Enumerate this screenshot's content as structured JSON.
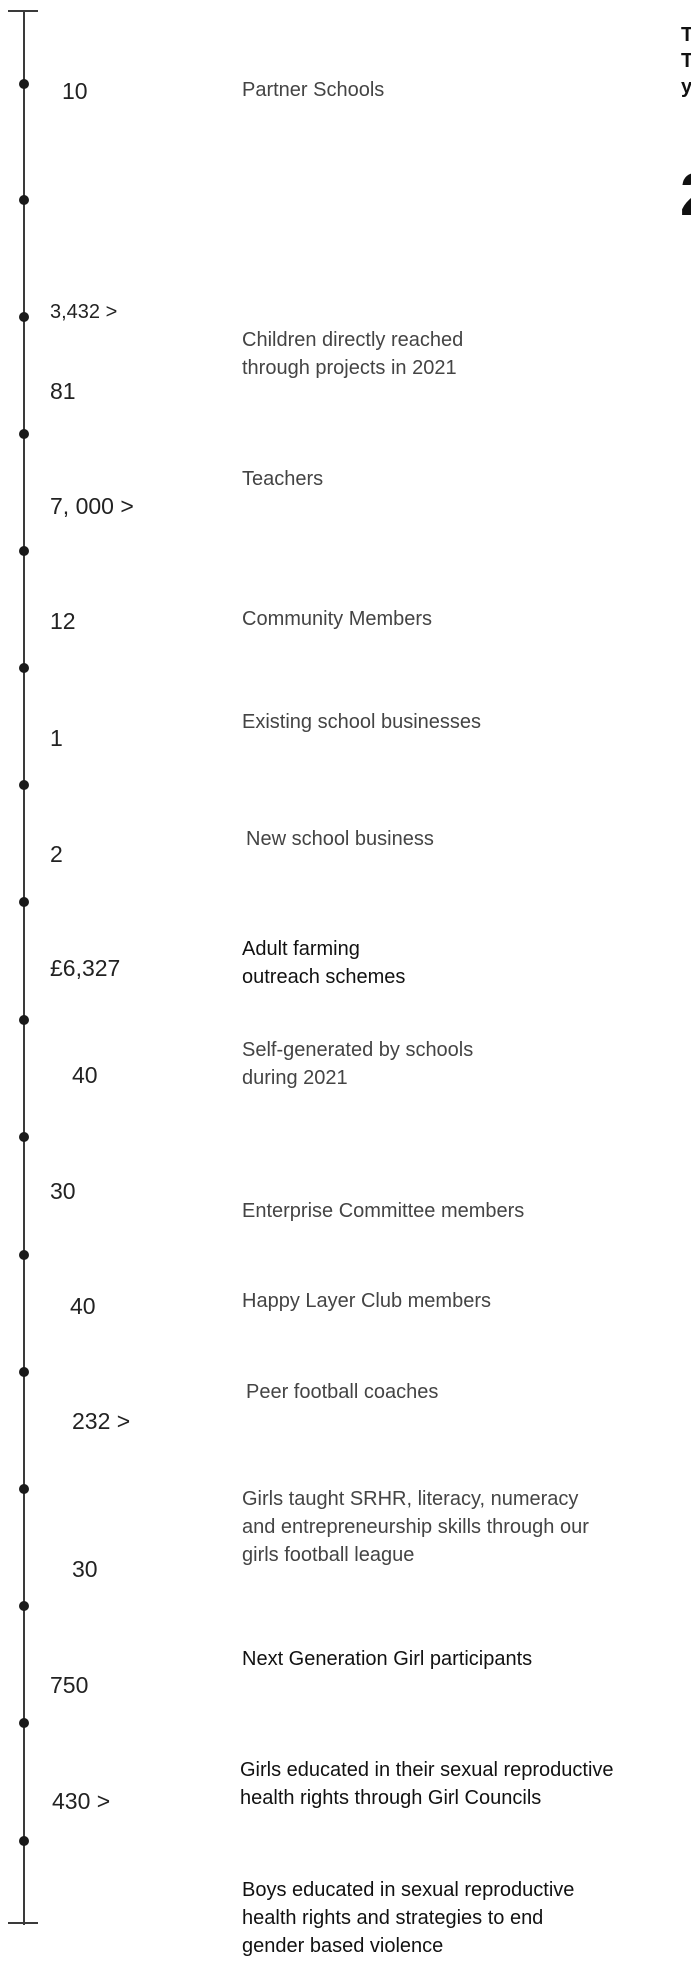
{
  "corner": {
    "lines": [
      "T",
      "T",
      "y"
    ],
    "big": "2"
  },
  "items": [
    {
      "number": "10",
      "label": [
        "Partner Schools"
      ]
    },
    {
      "number": "",
      "label": []
    },
    {
      "number": "3,432 >",
      "label": []
    },
    {
      "number": "81",
      "label": [
        "Children directly reached",
        "through projects in 2021"
      ]
    },
    {
      "number": "7, 000 >",
      "label": [
        "Teachers"
      ]
    },
    {
      "number": "12",
      "label": [
        "Community Members"
      ]
    },
    {
      "number": "1",
      "label": [
        "Existing school businesses"
      ]
    },
    {
      "number": "2",
      "label": [
        "New school business"
      ]
    },
    {
      "number": "£6,327",
      "label": [
        "Adult farming",
        "outreach schemes"
      ]
    },
    {
      "number": "40",
      "label": [
        "Self-generated by schools",
        "during 2021"
      ]
    },
    {
      "number": "30",
      "label": [
        "Enterprise Committee members"
      ]
    },
    {
      "number": "40",
      "label": [
        "Happy Layer Club members"
      ]
    },
    {
      "number": "232 >",
      "label": [
        "Peer football coaches"
      ]
    },
    {
      "number": "30",
      "label": [
        "Girls taught SRHR, literacy, numeracy",
        "and entrepreneurship skills through our",
        "girls football league"
      ]
    },
    {
      "number": "750",
      "label": [
        "Next Generation Girl participants"
      ]
    },
    {
      "number": "430 >",
      "label": [
        "Girls educated in their sexual reproductive",
        "health rights through Girl Councils"
      ]
    },
    {
      "number": "",
      "label": [
        "Boys educated in sexual reproductive",
        "health rights and strategies to end",
        "gender based violence"
      ]
    }
  ]
}
